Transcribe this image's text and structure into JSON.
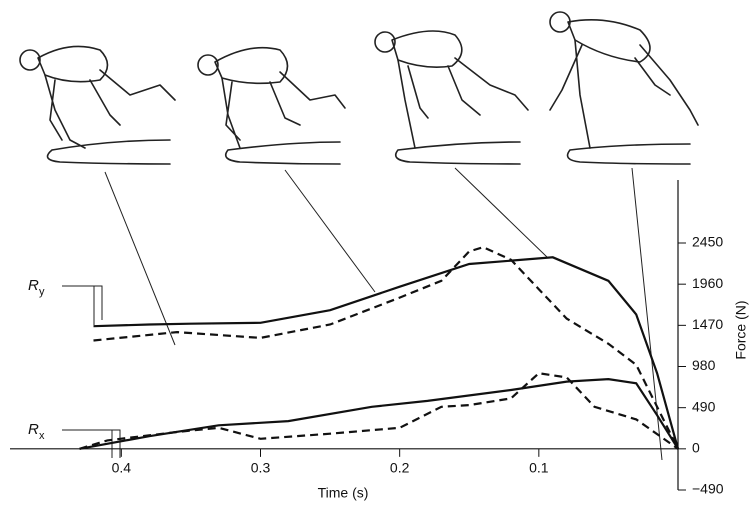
{
  "chart_data": {
    "type": "line",
    "xlabel": "Time (s)",
    "ylabel": "Force (N)",
    "xlim": [
      0.48,
      0
    ],
    "ylim": [
      -490,
      3200
    ],
    "xticks": [
      0.4,
      0.3,
      0.2,
      0.1
    ],
    "yticks": [
      {
        "value": -490,
        "label": "−490"
      },
      0,
      490,
      980,
      1470,
      1960,
      2450
    ],
    "annotations": [
      {
        "text": "R",
        "subscript": "y"
      },
      {
        "text": "R",
        "subscript": "x"
      }
    ],
    "series": [
      {
        "color": "#111111",
        "dash": false,
        "x": [
          0.42,
          0.38,
          0.35,
          0.3,
          0.25,
          0.2,
          0.15,
          0.09,
          0.05,
          0.03,
          0.015,
          0
        ],
        "values": [
          1460,
          1480,
          1490,
          1500,
          1650,
          1930,
          2200,
          2280,
          2000,
          1600,
          900,
          0
        ]
      },
      {
        "color": "#111111",
        "dash": true,
        "x": [
          0.42,
          0.36,
          0.3,
          0.25,
          0.2,
          0.17,
          0.15,
          0.14,
          0.12,
          0.1,
          0.08,
          0.05,
          0.03,
          0
        ],
        "values": [
          1290,
          1390,
          1320,
          1480,
          1800,
          2000,
          2350,
          2400,
          2250,
          1900,
          1550,
          1250,
          1000,
          0
        ]
      },
      {
        "color": "#111111",
        "dash": false,
        "x": [
          0.43,
          0.38,
          0.33,
          0.28,
          0.22,
          0.18,
          0.12,
          0.08,
          0.05,
          0.03,
          0.015,
          0
        ],
        "values": [
          0,
          150,
          280,
          330,
          500,
          570,
          700,
          800,
          830,
          780,
          400,
          0
        ]
      },
      {
        "color": "#111111",
        "dash": true,
        "x": [
          0.43,
          0.41,
          0.36,
          0.33,
          0.3,
          0.25,
          0.2,
          0.17,
          0.15,
          0.12,
          0.1,
          0.08,
          0.06,
          0.03,
          0
        ],
        "values": [
          0,
          100,
          200,
          250,
          120,
          180,
          250,
          500,
          520,
          600,
          900,
          850,
          500,
          350,
          0
        ]
      }
    ]
  }
}
